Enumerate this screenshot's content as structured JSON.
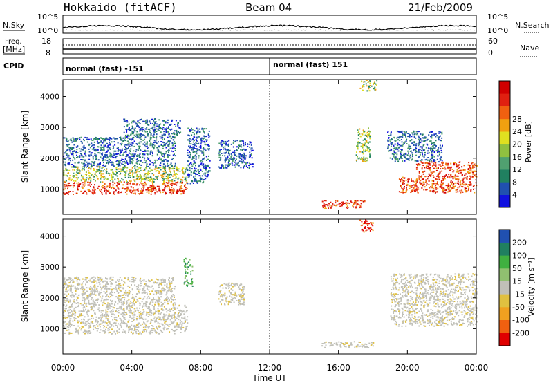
{
  "header": {
    "station": "Hokkaido (fitACF)",
    "beam": "Beam 04",
    "date": "21/Feb/2009"
  },
  "top_panels": {
    "nsky_label": "N.Sky",
    "nsky_ticks": [
      "10^5",
      "10^0"
    ],
    "nsearch_label": "N.Search",
    "nsearch_ticks": [
      "10^5",
      "10^0"
    ],
    "freq_label": "Freq.",
    "freq_unit": "[MHz]",
    "freq_ticks": [
      "18",
      "8"
    ],
    "nave_label": "Nave",
    "nave_ticks": [
      "60",
      "0"
    ],
    "cpid_label": "CPID",
    "cpid_segments": [
      {
        "label": "normal (fast) -151",
        "start_hour": 0
      },
      {
        "label": "normal (fast) 151",
        "start_hour": 12
      }
    ]
  },
  "chart_data": [
    {
      "type": "heatmap",
      "name": "power",
      "ylabel": "Slant Range [km]",
      "ylim": [
        180,
        4550
      ],
      "yticks": [
        1000,
        2000,
        3000,
        4000
      ],
      "xlim": [
        0,
        24
      ],
      "colorbar": {
        "label": "Power [dB]",
        "ticks": [
          "4",
          "8",
          "12",
          "16",
          "20",
          "24",
          "28"
        ],
        "colors": [
          "#1010e0",
          "#2050b0",
          "#208060",
          "#50a070",
          "#90c040",
          "#e0e020",
          "#f0a010",
          "#f06010",
          "#e02010",
          "#d00000"
        ]
      },
      "echo_regions": [
        {
          "t0": 0.0,
          "t1": 7.2,
          "r0": 850,
          "r1": 1250,
          "level": "high"
        },
        {
          "t0": 0.0,
          "t1": 7.2,
          "r0": 1250,
          "r1": 1750,
          "level": "mid"
        },
        {
          "t0": 0.0,
          "t1": 6.5,
          "r0": 1750,
          "r1": 2700,
          "level": "low"
        },
        {
          "t0": 3.5,
          "t1": 6.8,
          "r0": 2700,
          "r1": 3300,
          "level": "low"
        },
        {
          "t0": 7.2,
          "t1": 8.5,
          "r0": 1200,
          "r1": 3000,
          "level": "low"
        },
        {
          "t0": 9.0,
          "t1": 11.0,
          "r0": 1700,
          "r1": 2600,
          "level": "low"
        },
        {
          "t0": 15.0,
          "t1": 17.5,
          "r0": 380,
          "r1": 650,
          "level": "high"
        },
        {
          "t0": 17.0,
          "t1": 17.8,
          "r0": 1900,
          "r1": 3000,
          "level": "mid"
        },
        {
          "t0": 17.2,
          "t1": 18.2,
          "r0": 4200,
          "r1": 4550,
          "level": "mid"
        },
        {
          "t0": 19.5,
          "t1": 24.0,
          "r0": 900,
          "r1": 1400,
          "level": "high"
        },
        {
          "t0": 20.5,
          "t1": 24.0,
          "r0": 1400,
          "r1": 1900,
          "level": "high"
        },
        {
          "t0": 18.8,
          "t1": 22.0,
          "r0": 1900,
          "r1": 2900,
          "level": "low"
        }
      ]
    },
    {
      "type": "heatmap",
      "name": "velocity",
      "ylabel": "Slant Range [km]",
      "ylim": [
        180,
        4550
      ],
      "yticks": [
        1000,
        2000,
        3000,
        4000
      ],
      "xlim": [
        0,
        24
      ],
      "xticks": [
        "00:00",
        "04:00",
        "08:00",
        "12:00",
        "16:00",
        "20:00",
        "00:00"
      ],
      "xlabel": "Time UT",
      "colorbar": {
        "label": "Velocity [m s⁻¹]",
        "ticks": [
          "-200",
          "-100",
          "-50",
          "-15",
          "15",
          "50",
          "100",
          "200"
        ],
        "colors": [
          "#e00000",
          "#f06010",
          "#f0a020",
          "#e0c040",
          "#c0c0b8",
          "#90c070",
          "#40b040",
          "#208060",
          "#2050b0"
        ]
      },
      "echo_regions": [
        {
          "t0": 0.0,
          "t1": 7.2,
          "r0": 850,
          "r1": 1800,
          "level": "ground"
        },
        {
          "t0": 0.0,
          "t1": 6.5,
          "r0": 1800,
          "r1": 2700,
          "level": "ground"
        },
        {
          "t0": 7.0,
          "t1": 7.5,
          "r0": 2400,
          "r1": 3300,
          "level": "positive"
        },
        {
          "t0": 9.0,
          "t1": 10.5,
          "r0": 1800,
          "r1": 2500,
          "level": "ground"
        },
        {
          "t0": 15.0,
          "t1": 18.0,
          "r0": 400,
          "r1": 600,
          "level": "ground"
        },
        {
          "t0": 17.2,
          "t1": 18.0,
          "r0": 4150,
          "r1": 4550,
          "level": "negative"
        },
        {
          "t0": 19.0,
          "t1": 24.0,
          "r0": 1100,
          "r1": 2800,
          "level": "ground"
        }
      ]
    }
  ]
}
